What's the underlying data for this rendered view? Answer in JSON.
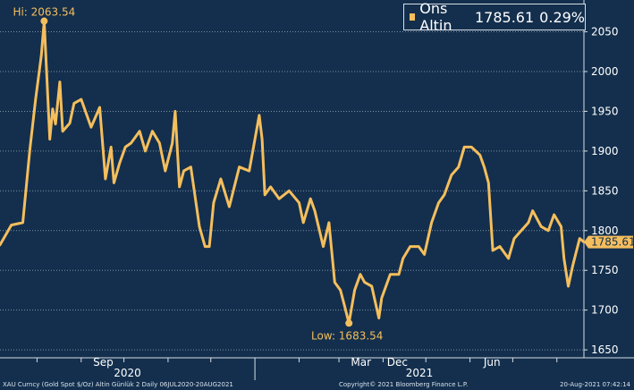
{
  "chart_data": {
    "type": "line",
    "legend": {
      "label": "Ons Altin",
      "value": "1785.61",
      "change": "0.29%"
    },
    "y_axis": {
      "ticks": [
        1650,
        1700,
        1750,
        1800,
        1850,
        1900,
        1950,
        2000,
        2050
      ],
      "ylim": [
        1640,
        2090
      ],
      "position": "right"
    },
    "x_axis": {
      "month_labels": [
        "Sep",
        "Dec",
        "Mar",
        "Jun"
      ],
      "year_labels": [
        "2020",
        "2021"
      ],
      "xlim": [
        "2020-07-06",
        "2021-08-20"
      ]
    },
    "annotations": {
      "high": {
        "label": "Hi:",
        "value": "2063.54",
        "date": "2020-08-06"
      },
      "low": {
        "label": "Low:",
        "value": "1683.54",
        "date": "2021-03-08"
      },
      "last_value": "1785.61"
    },
    "series": [
      {
        "name": "Ons Altin",
        "x": [
          "2020-07-06",
          "2020-07-14",
          "2020-07-22",
          "2020-07-27",
          "2020-07-31",
          "2020-08-04",
          "2020-08-06",
          "2020-08-10",
          "2020-08-12",
          "2020-08-14",
          "2020-08-17",
          "2020-08-19",
          "2020-08-24",
          "2020-08-27",
          "2020-09-01",
          "2020-09-08",
          "2020-09-14",
          "2020-09-18",
          "2020-09-22",
          "2020-09-24",
          "2020-09-28",
          "2020-10-02",
          "2020-10-06",
          "2020-10-12",
          "2020-10-16",
          "2020-10-21",
          "2020-10-26",
          "2020-10-30",
          "2020-11-04",
          "2020-11-06",
          "2020-11-09",
          "2020-11-12",
          "2020-11-17",
          "2020-11-23",
          "2020-11-27",
          "2020-11-30",
          "2020-12-03",
          "2020-12-08",
          "2020-12-14",
          "2020-12-21",
          "2020-12-28",
          "2021-01-04",
          "2021-01-06",
          "2021-01-08",
          "2021-01-12",
          "2021-01-18",
          "2021-01-25",
          "2021-02-01",
          "2021-02-04",
          "2021-02-09",
          "2021-02-12",
          "2021-02-18",
          "2021-02-22",
          "2021-02-26",
          "2021-03-02",
          "2021-03-05",
          "2021-03-08",
          "2021-03-12",
          "2021-03-16",
          "2021-03-19",
          "2021-03-24",
          "2021-03-29",
          "2021-03-31",
          "2021-04-06",
          "2021-04-12",
          "2021-04-15",
          "2021-04-20",
          "2021-04-26",
          "2021-04-30",
          "2021-05-05",
          "2021-05-10",
          "2021-05-14",
          "2021-05-19",
          "2021-05-24",
          "2021-05-28",
          "2021-06-02",
          "2021-06-08",
          "2021-06-11",
          "2021-06-14",
          "2021-06-17",
          "2021-06-22",
          "2021-06-28",
          "2021-07-02",
          "2021-07-07",
          "2021-07-12",
          "2021-07-15",
          "2021-07-21",
          "2021-07-26",
          "2021-07-30",
          "2021-08-04",
          "2021-08-06",
          "2021-08-09",
          "2021-08-12",
          "2021-08-17",
          "2021-08-20"
        ],
        "values": [
          1782,
          1807,
          1810,
          1902,
          1965,
          2020,
          2063.54,
          1915,
          1953,
          1934,
          1987,
          1925,
          1935,
          1960,
          1965,
          1930,
          1955,
          1865,
          1905,
          1860,
          1885,
          1905,
          1910,
          1925,
          1900,
          1925,
          1910,
          1875,
          1910,
          1950,
          1855,
          1875,
          1880,
          1805,
          1780,
          1780,
          1835,
          1865,
          1830,
          1880,
          1875,
          1945,
          1915,
          1845,
          1855,
          1840,
          1850,
          1835,
          1810,
          1840,
          1825,
          1780,
          1810,
          1735,
          1725,
          1705,
          1683.54,
          1725,
          1745,
          1735,
          1730,
          1690,
          1715,
          1745,
          1745,
          1765,
          1780,
          1780,
          1770,
          1810,
          1835,
          1845,
          1870,
          1880,
          1905,
          1905,
          1895,
          1880,
          1860,
          1775,
          1780,
          1765,
          1790,
          1800,
          1810,
          1825,
          1805,
          1800,
          1820,
          1805,
          1765,
          1730,
          1755,
          1790,
          1785.61
        ]
      }
    ]
  },
  "footer": {
    "left": "XAU Curncy (Gold Spot  $/Oz) Altin Günlük 2  Daily 06JUL2020-20AUG2021",
    "center": "Copyright© 2021 Bloomberg Finance L.P.",
    "right": "20-Aug-2021 07:42:14"
  },
  "colors": {
    "background": "#132f4d",
    "line": "#f5be5d",
    "grid": "#7f90a5",
    "text": "#ffffff"
  }
}
